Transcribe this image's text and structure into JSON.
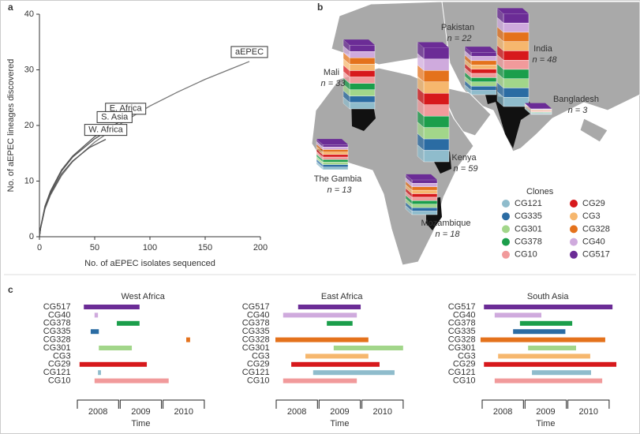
{
  "chart_data": [
    {
      "type": "line",
      "label": "a",
      "xlabel": "No. of aEPEC isolates sequenced",
      "ylabel": "No. of aEPEC lineages discovered",
      "xlim": [
        0,
        200
      ],
      "ylim": [
        0,
        40
      ],
      "xticks": [
        0,
        50,
        100,
        150,
        200
      ],
      "yticks": [
        0,
        10,
        20,
        30,
        40
      ],
      "series": [
        {
          "name": "aEPEC",
          "color": "#777777",
          "x": [
            0,
            1,
            5,
            10,
            20,
            30,
            50,
            75,
            100,
            125,
            150,
            175,
            190
          ],
          "values": [
            0,
            1.5,
            5,
            7.5,
            11,
            13.5,
            17,
            20.5,
            23.5,
            26,
            28.3,
            30.3,
            31.5
          ]
        },
        {
          "name": "E. Africa",
          "color": "#555555",
          "x": [
            0,
            1,
            5,
            10,
            20,
            30,
            50,
            78
          ],
          "values": [
            0,
            1.6,
            5.5,
            8.2,
            12,
            14.5,
            18,
            21.3
          ]
        },
        {
          "name": "S. Asia",
          "color": "#555555",
          "x": [
            0,
            1,
            5,
            10,
            20,
            30,
            50,
            68
          ],
          "values": [
            0,
            1.6,
            5.4,
            8,
            11.8,
            14.3,
            17.6,
            19.8
          ]
        },
        {
          "name": "W. Africa",
          "color": "#555555",
          "x": [
            0,
            1,
            5,
            10,
            20,
            30,
            45,
            60
          ],
          "values": [
            0,
            1.5,
            5.2,
            7.7,
            11.3,
            13.6,
            16,
            17.5
          ]
        }
      ]
    },
    {
      "type": "map",
      "label": "b",
      "legend_title": "Clones",
      "categories": [
        "Mali",
        "The Gambia",
        "Kenya",
        "Mozambique",
        "Pakistan",
        "India",
        "Bangladesh"
      ],
      "values": [
        33,
        13,
        59,
        18,
        22,
        48,
        3
      ],
      "value_labels": [
        "n = 33",
        "n = 13",
        "n = 59",
        "n = 18",
        "n = 22",
        "n = 48",
        "n = 3"
      ],
      "series": [
        {
          "name": "CG121",
          "color": "#8fbccc"
        },
        {
          "name": "CG335",
          "color": "#2b6ca3"
        },
        {
          "name": "CG301",
          "color": "#a2d68a"
        },
        {
          "name": "CG378",
          "color": "#1b9e4b"
        },
        {
          "name": "CG10",
          "color": "#f19a9b"
        },
        {
          "name": "CG29",
          "color": "#d7191c"
        },
        {
          "name": "CG3",
          "color": "#f6b76e"
        },
        {
          "name": "CG328",
          "color": "#e4721c"
        },
        {
          "name": "CG40",
          "color": "#cfaadd"
        },
        {
          "name": "CG517",
          "color": "#6b2c96"
        }
      ]
    },
    {
      "type": "timeline",
      "label": "c",
      "title": "West Africa",
      "xlabel": "Time",
      "xlim": [
        2007.9,
        2011.2
      ],
      "xticks": [
        2008,
        2009,
        2010
      ],
      "categories": [
        "CG517",
        "CG40",
        "CG378",
        "CG335",
        "CG328",
        "CG301",
        "CG3",
        "CG29",
        "CG121",
        "CG10"
      ],
      "colors": [
        "#6b2c96",
        "#cfaadd",
        "#1b9e4b",
        "#2b6ca3",
        "#e4721c",
        "#a2d68a",
        "#f6b76e",
        "#d7191c",
        "#8fbccc",
        "#f19a9b"
      ],
      "start": [
        2008.17,
        2008.42,
        2008.94,
        2008.33,
        2010.56,
        2008.52,
        null,
        2008.07,
        2008.5,
        2008.42
      ],
      "end": [
        2009.47,
        2008.5,
        2009.47,
        2008.52,
        2010.65,
        2009.29,
        null,
        2009.64,
        2008.57,
        2010.15
      ]
    },
    {
      "type": "timeline",
      "title": "East Africa",
      "xlabel": "Time",
      "xlim": [
        2007.9,
        2011.2
      ],
      "xticks": [
        2008,
        2009,
        2010
      ],
      "categories": [
        "CG517",
        "CG40",
        "CG378",
        "CG335",
        "CG328",
        "CG301",
        "CG3",
        "CG29",
        "CG121",
        "CG10"
      ],
      "colors": [
        "#6b2c96",
        "#cfaadd",
        "#1b9e4b",
        "#2b6ca3",
        "#e4721c",
        "#a2d68a",
        "#f6b76e",
        "#d7191c",
        "#8fbccc",
        "#f19a9b"
      ],
      "start": [
        2008.53,
        2008.18,
        2009.2,
        null,
        2008.0,
        2009.36,
        2008.7,
        2008.37,
        2008.88,
        2008.18
      ],
      "end": [
        2009.99,
        2009.9,
        2009.8,
        null,
        2010.17,
        2010.98,
        2010.17,
        2010.43,
        2010.78,
        2009.9
      ]
    },
    {
      "type": "timeline",
      "title": "South Asia",
      "xlabel": "Time",
      "xlim": [
        2007.9,
        2011.2
      ],
      "xticks": [
        2008,
        2009,
        2010
      ],
      "categories": [
        "CG517",
        "CG40",
        "CG378",
        "CG335",
        "CG328",
        "CG301",
        "CG3",
        "CG29",
        "CG121",
        "CG10"
      ],
      "colors": [
        "#6b2c96",
        "#cfaadd",
        "#1b9e4b",
        "#2b6ca3",
        "#e4721c",
        "#a2d68a",
        "#f6b76e",
        "#d7191c",
        "#8fbccc",
        "#f19a9b"
      ],
      "start": [
        2008.06,
        2008.31,
        2008.9,
        2008.74,
        2007.98,
        2009.09,
        2008.39,
        2008.06,
        2009.18,
        2008.31
      ],
      "end": [
        2011.06,
        2009.4,
        2010.12,
        2009.96,
        2010.89,
        2010.21,
        2010.54,
        2011.15,
        2010.56,
        2010.82
      ]
    }
  ]
}
